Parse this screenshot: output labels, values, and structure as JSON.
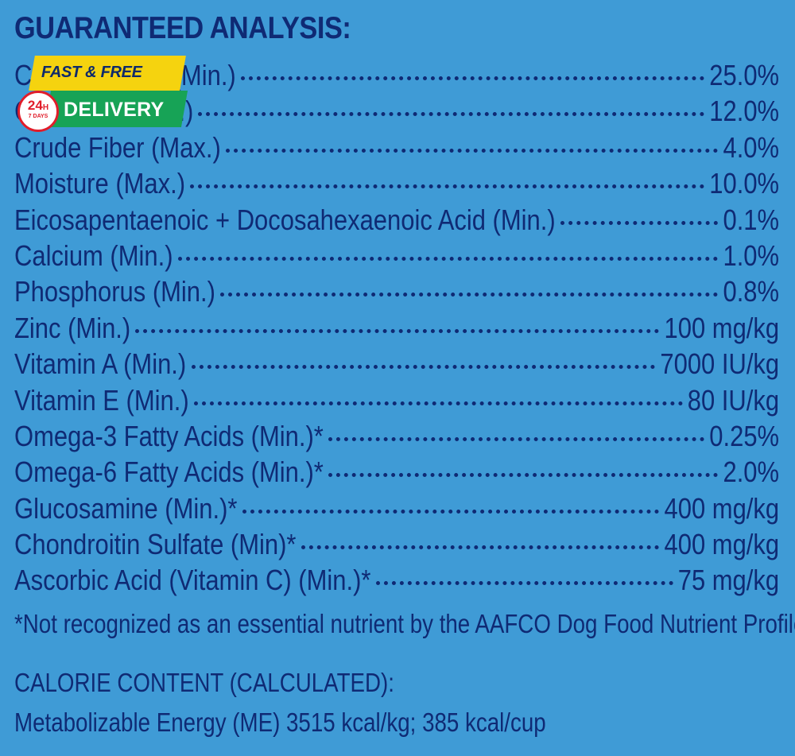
{
  "title": "GUARANTEED ANALYSIS:",
  "rows": [
    {
      "label": "Crude Protein (Min.)",
      "value": "25.0%"
    },
    {
      "label": "Crude Fat (Min.)",
      "value": "12.0%"
    },
    {
      "label": "Crude Fiber (Max.)",
      "value": "4.0%"
    },
    {
      "label": "Moisture (Max.)",
      "value": "10.0%"
    },
    {
      "label": "Eicosapentaenoic + Docosahexaenoic Acid (Min.)",
      "value": "0.1%"
    },
    {
      "label": "Calcium (Min.)",
      "value": "1.0%"
    },
    {
      "label": "Phosphorus (Min.)",
      "value": "0.8%"
    },
    {
      "label": "Zinc (Min.)",
      "value": "100 mg/kg"
    },
    {
      "label": "Vitamin A (Min.)",
      "value": "7000 IU/kg"
    },
    {
      "label": "Vitamin E (Min.)",
      "value": "80 IU/kg"
    },
    {
      "label": "Omega-3 Fatty Acids (Min.)*",
      "value": "0.25%"
    },
    {
      "label": "Omega-6 Fatty Acids (Min.)*",
      "value": "2.0%"
    },
    {
      "label": "Glucosamine (Min.)*",
      "value": "400 mg/kg"
    },
    {
      "label": "Chondroitin Sulfate (Min)*",
      "value": "400 mg/kg"
    },
    {
      "label": "Ascorbic Acid (Vitamin C) (Min.)*",
      "value": "75 mg/kg"
    }
  ],
  "footnote": "*Not recognized as an essential nutrient by the AAFCO Dog Food Nutrient Profiles.",
  "calorie": {
    "title": "CALORIE CONTENT (CALCULATED):",
    "line": "Metabolizable Energy (ME) 3515 kcal/kg;  385 kcal/cup"
  },
  "badge": {
    "top_text": "FAST & FREE",
    "bottom_text": "DELIVERY",
    "circle_main": "24",
    "circle_unit": "H",
    "circle_sub": "7 DAYS"
  },
  "colors": {
    "background": "#3f9bd6",
    "text": "#0f2a74",
    "badge_yellow": "#f5d30f",
    "badge_green": "#17a356",
    "badge_red": "#e11d2a"
  }
}
